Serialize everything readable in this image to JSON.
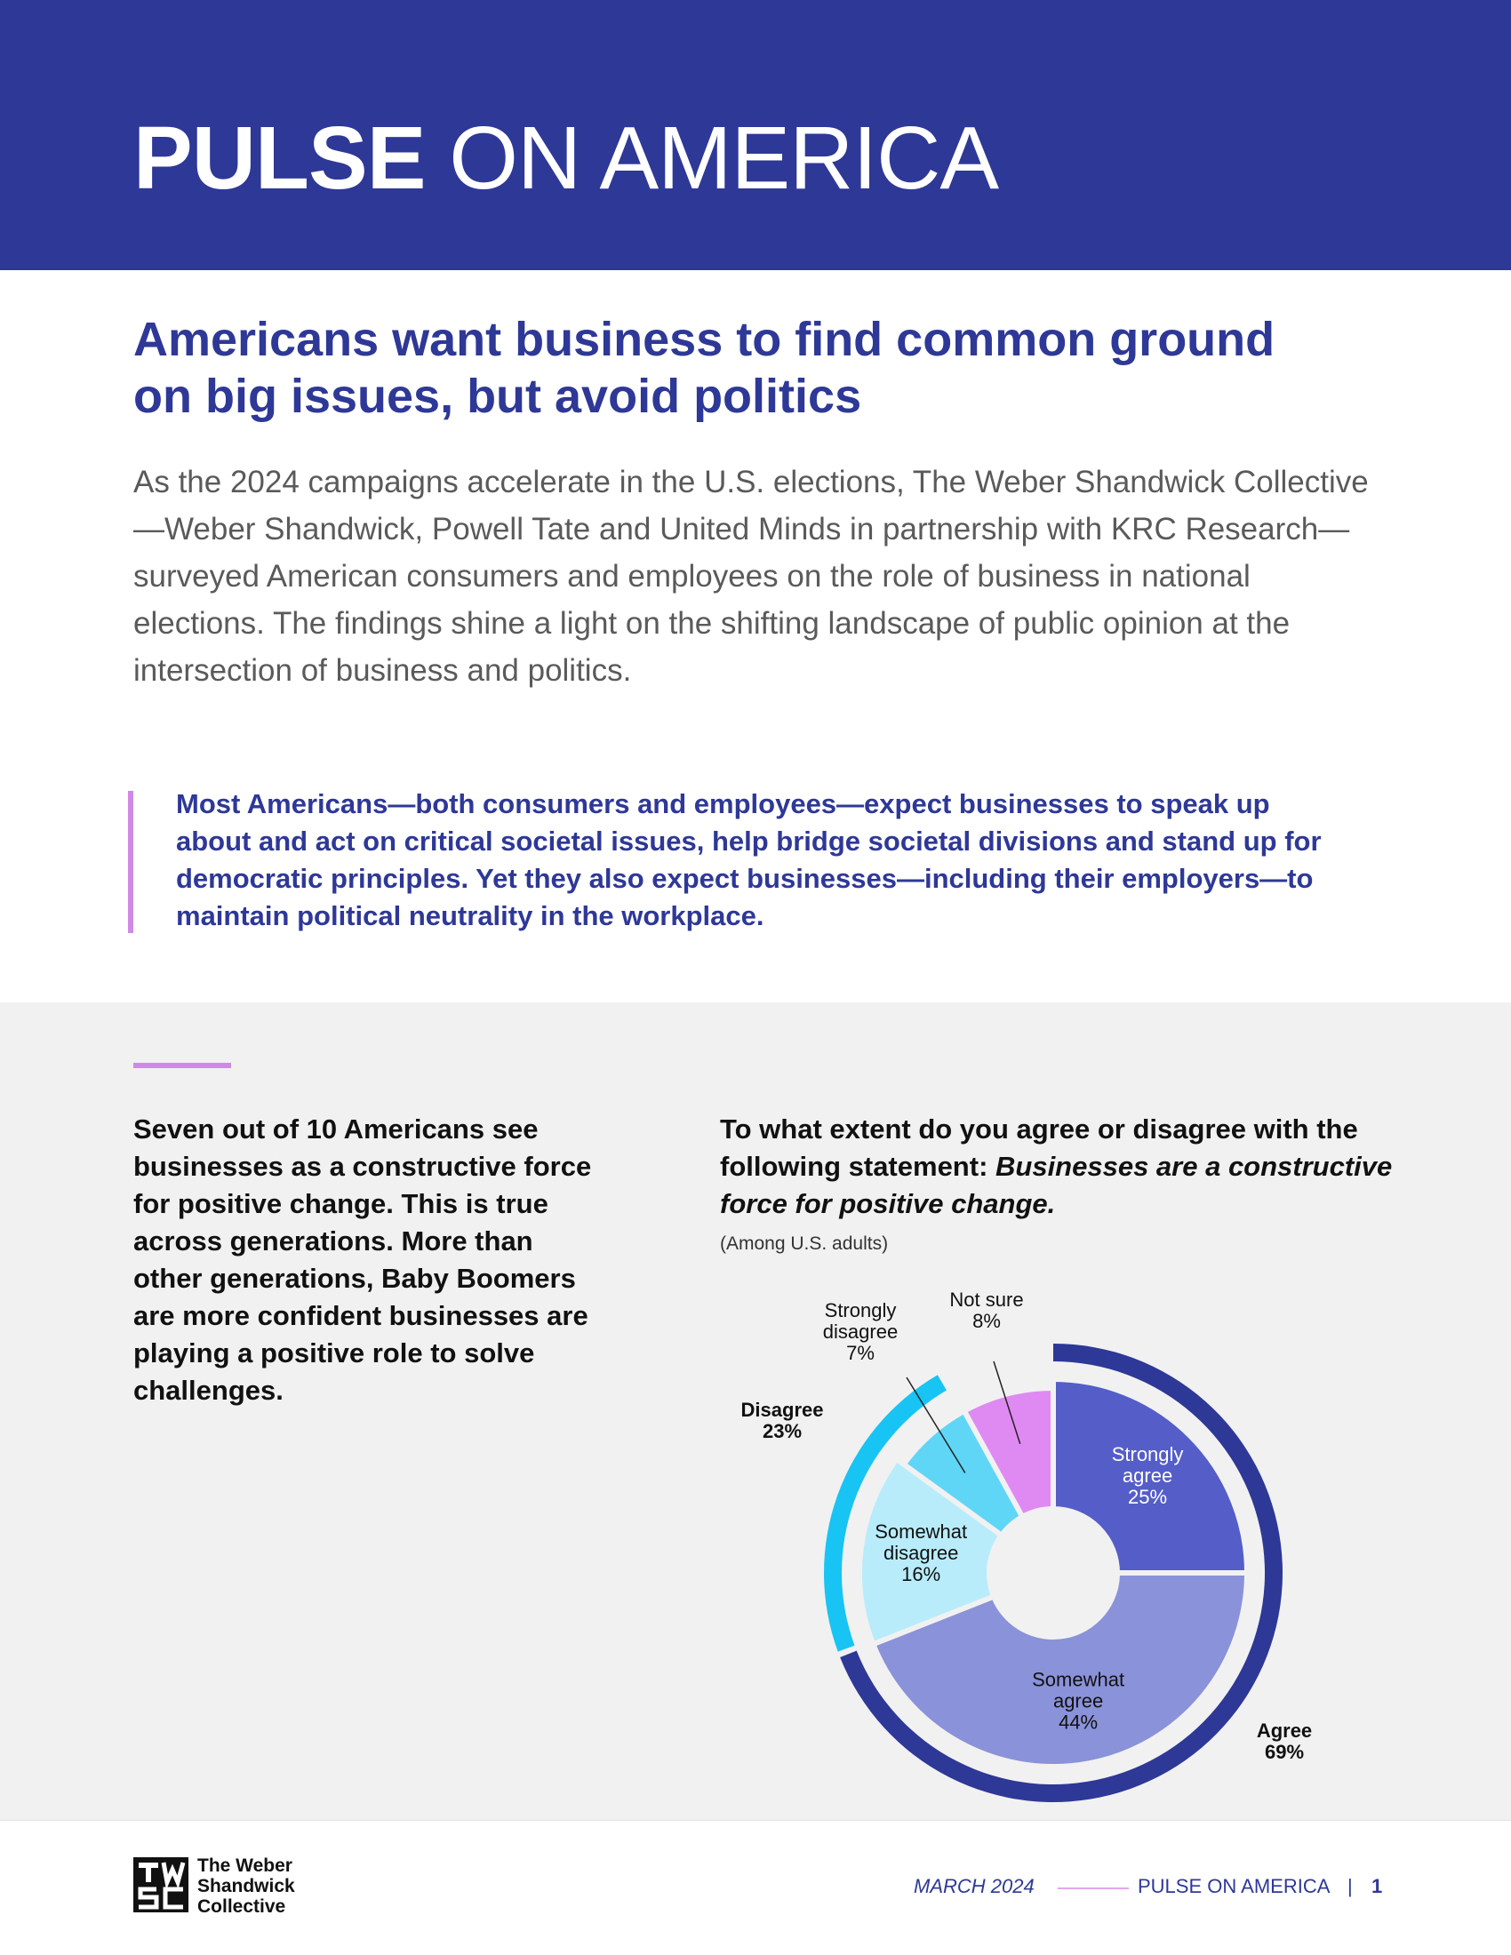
{
  "header": {
    "title_bold": "PULSE",
    "title_light": "ON AMERICA"
  },
  "headline": "Americans want business to find common ground on big issues, but avoid politics",
  "intro": "As the 2024 campaigns accelerate in the U.S. elections, The Weber Shandwick Collective—Weber Shandwick, Powell Tate and United Minds in partnership with KRC Research—surveyed American consumers and employees on the role of business in national elections. The findings shine a light on the shifting landscape of public opinion at the intersection of business and politics.",
  "pullquote": "Most Americans—both consumers and employees—expect businesses to speak up about and act on critical societal issues, help bridge societal divisions and stand up for democratic principles. Yet they also expect businesses—including their employers—to maintain political neutrality in the workplace.",
  "lead": "Seven out of 10 Americans see businesses as a constructive force for positive change. This is true across generations. More than other generations, Baby Boomers are more confident businesses are playing a positive role to solve challenges.",
  "question": {
    "prefix": "To what extent do you agree or disagree with the following statement: ",
    "statement": "Businesses are a constructive force for positive change.",
    "base": "(Among U.S. adults)"
  },
  "chart_data": {
    "type": "pie",
    "title": "To what extent do you agree or disagree with the following statement: Businesses are a constructive force for positive change.",
    "subtitle": "(Among U.S. adults)",
    "slices": [
      {
        "label_lines": [
          "Strongly",
          "agree"
        ],
        "value": 25,
        "value_label": "25%",
        "color": "#545dc8",
        "text_color": "#ffffff"
      },
      {
        "label_lines": [
          "Somewhat",
          "agree"
        ],
        "value": 44,
        "value_label": "44%",
        "color": "#8a92d9",
        "text_color": "#111111"
      },
      {
        "label_lines": [
          "Somewhat",
          "disagree"
        ],
        "value": 16,
        "value_label": "16%",
        "color": "#b8ecfb",
        "text_color": "#111111"
      },
      {
        "label_lines": [
          "Strongly",
          "disagree"
        ],
        "value": 7,
        "value_label": "7%",
        "color": "#5fd6f6",
        "text_color": "#111111"
      },
      {
        "label_lines": [
          "Not sure"
        ],
        "value": 8,
        "value_label": "8%",
        "color": "#df8af3",
        "text_color": "#111111"
      }
    ],
    "groups": [
      {
        "label": "Agree",
        "value_label": "69%",
        "color": "#2e3897"
      },
      {
        "label": "Disagree",
        "value_label": "23%",
        "color": "#18c4f3"
      }
    ]
  },
  "footer": {
    "logo_lines": [
      "The Weber",
      "Shandwick",
      "Collective"
    ],
    "date": "MARCH 2024",
    "publication": "PULSE ON AMERICA",
    "separator": "|",
    "page": "1"
  }
}
